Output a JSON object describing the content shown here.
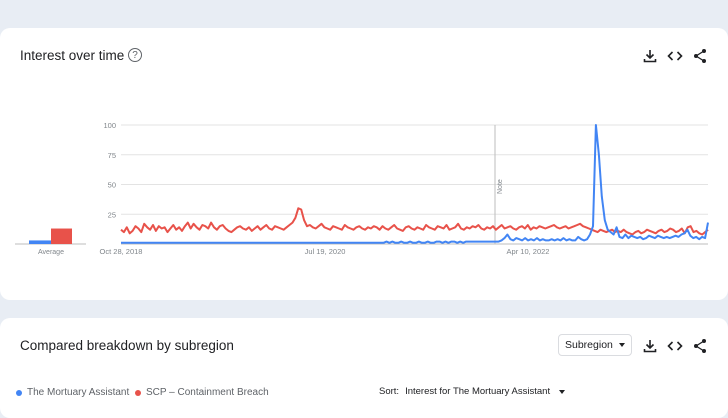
{
  "interest_section": {
    "title": "Interest over time",
    "help_glyph": "?",
    "average_label": "Average",
    "note_label": "Note"
  },
  "breakdown_section": {
    "title": "Compared breakdown by subregion",
    "select_value": "Subregion",
    "sort_label": "Sort:",
    "sort_value": "Interest for The Mortuary Assistant"
  },
  "legend": [
    {
      "label": "The Mortuary Assistant",
      "color": "#4285f4"
    },
    {
      "label": "SCP – Containment Breach",
      "color": "#e8524a"
    }
  ],
  "icons": [
    "download-icon",
    "embed-icon",
    "share-icon",
    "help-icon"
  ],
  "chart_data": {
    "type": "line",
    "x_tick_labels": [
      "Oct 28, 2018",
      "Jul 19, 2020",
      "Apr 10, 2022"
    ],
    "y_tick_labels": [
      "100",
      "75",
      "50",
      "25"
    ],
    "ylim": [
      0,
      100
    ],
    "grid": true,
    "note_at": "early 2022",
    "series": [
      {
        "name": "The Mortuary Assistant",
        "color": "#4285f4",
        "average": 3,
        "values": [
          1,
          1,
          1,
          1,
          1,
          1,
          1,
          1,
          1,
          1,
          1,
          1,
          1,
          1,
          1,
          1,
          1,
          1,
          1,
          1,
          1,
          1,
          1,
          1,
          1,
          1,
          1,
          1,
          1,
          1,
          1,
          1,
          1,
          1,
          1,
          1,
          1,
          1,
          1,
          1,
          1,
          1,
          1,
          1,
          1,
          1,
          1,
          1,
          1,
          1,
          1,
          1,
          1,
          1,
          1,
          1,
          1,
          1,
          1,
          1,
          1,
          1,
          1,
          1,
          1,
          1,
          1,
          1,
          1,
          1,
          1,
          1,
          1,
          1,
          1,
          1,
          1,
          1,
          1,
          1,
          1,
          1,
          1,
          1,
          1,
          1,
          1,
          1,
          1,
          1,
          2,
          1,
          2,
          1,
          1,
          2,
          1,
          1,
          2,
          1,
          1,
          2,
          1,
          1,
          2,
          1,
          1,
          2,
          2,
          1,
          2,
          1,
          2,
          2,
          1,
          2,
          1,
          2,
          2,
          2,
          2,
          2,
          2,
          2,
          2,
          2,
          2,
          2,
          2,
          3,
          5,
          8,
          4,
          3,
          5,
          4,
          3,
          5,
          3,
          4,
          3,
          5,
          3,
          4,
          3,
          3,
          4,
          3,
          4,
          3,
          5,
          3,
          4,
          3,
          3,
          6,
          4,
          3,
          4,
          8,
          15,
          100,
          75,
          40,
          20,
          12,
          10,
          8,
          14,
          6,
          5,
          8,
          5,
          7,
          6,
          5,
          6,
          4,
          5,
          7,
          6,
          5,
          7,
          6,
          5,
          6,
          5,
          6,
          7,
          6,
          8,
          9,
          12,
          7,
          5,
          6,
          4,
          6,
          5,
          18
        ]
      },
      {
        "name": "SCP – Containment Breach",
        "color": "#e8524a",
        "average": 13,
        "values": [
          12,
          10,
          14,
          9,
          11,
          15,
          13,
          10,
          17,
          14,
          12,
          16,
          11,
          15,
          13,
          14,
          10,
          13,
          16,
          12,
          14,
          11,
          15,
          18,
          13,
          17,
          14,
          12,
          16,
          15,
          13,
          18,
          14,
          12,
          15,
          16,
          13,
          11,
          10,
          12,
          14,
          15,
          13,
          12,
          14,
          11,
          13,
          15,
          12,
          14,
          16,
          13,
          12,
          15,
          14,
          13,
          12,
          14,
          16,
          18,
          22,
          30,
          29,
          20,
          15,
          16,
          14,
          13,
          15,
          17,
          14,
          13,
          12,
          15,
          14,
          13,
          12,
          16,
          14,
          13,
          12,
          14,
          15,
          13,
          12,
          14,
          13,
          15,
          14,
          12,
          15,
          13,
          12,
          14,
          16,
          13,
          12,
          11,
          14,
          15,
          13,
          12,
          14,
          13,
          12,
          16,
          14,
          13,
          12,
          15,
          14,
          13,
          16,
          12,
          13,
          14,
          17,
          13,
          12,
          14,
          13,
          15,
          14,
          16,
          13,
          12,
          14,
          13,
          15,
          12,
          14,
          16,
          13,
          14,
          15,
          13,
          12,
          14,
          15,
          13,
          16,
          12,
          14,
          13,
          15,
          14,
          13,
          14,
          15,
          16,
          14,
          13,
          14,
          15,
          13,
          14,
          15,
          16,
          17,
          15,
          14,
          13,
          12,
          11,
          10,
          12,
          11,
          10,
          11,
          12,
          10,
          11,
          10,
          12,
          10,
          9,
          8,
          10,
          11,
          9,
          10,
          12,
          11,
          10,
          9,
          11,
          12,
          10,
          11,
          13,
          12,
          10,
          11,
          13,
          9,
          14,
          15,
          10,
          11,
          9,
          8,
          10,
          12
        ]
      }
    ]
  }
}
